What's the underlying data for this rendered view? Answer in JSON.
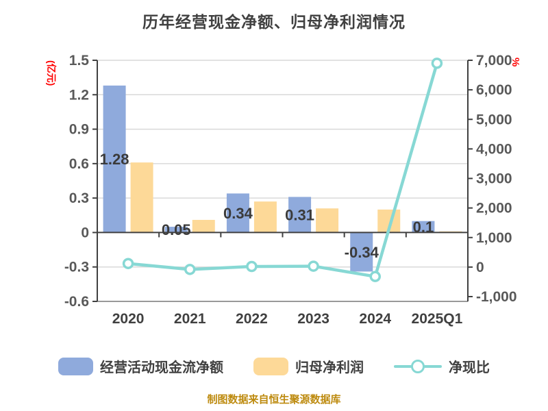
{
  "title": "历年经营现金净额、归母净利润情况",
  "footer": "制图数据来自恒生聚源数据库",
  "colors": {
    "operating_cash_bar": "#8FAADC",
    "net_profit_bar": "#FDD998",
    "ratio_line": "#87D8D4",
    "axis_unit_label": "#FF0000",
    "title_text": "#404040",
    "tick_text": "#595959",
    "gridline": "#D9D9D9",
    "axis_line": "#404040",
    "footer_text": "#BD8A0E"
  },
  "legend": [
    {
      "label": "经营活动现金流净额",
      "type": "bar"
    },
    {
      "label": "归母净利润",
      "type": "bar"
    },
    {
      "label": "净现比",
      "type": "line"
    }
  ],
  "chart_data": {
    "type": "bar",
    "subtype": "grouped bars with overlay line, dual y-axes",
    "title": "历年经营现金净额、归母净利润情况",
    "categories": [
      "2020",
      "2021",
      "2022",
      "2023",
      "2024",
      "2025Q1"
    ],
    "series": [
      {
        "name": "经营活动现金流净额",
        "type": "bar",
        "axis": "left",
        "key": "operating-cash",
        "color": "#8FAADC",
        "values": [
          1.28,
          0.05,
          0.34,
          0.31,
          -0.34,
          0.1
        ],
        "labels": [
          "1.28",
          "0.05",
          "0.34",
          "0.31",
          "-0.34",
          "0.1"
        ]
      },
      {
        "name": "归母净利润",
        "type": "bar",
        "axis": "left",
        "key": "net-profit",
        "color": "#FDD998",
        "values": [
          0.61,
          0.11,
          0.27,
          0.21,
          0.2,
          0.01
        ]
      },
      {
        "name": "净现比",
        "type": "line",
        "axis": "right",
        "key": "ratio",
        "color": "#87D8D4",
        "values": [
          120,
          -80,
          20,
          30,
          -320,
          6900
        ]
      }
    ],
    "left_axis": {
      "label": "(亿元)",
      "min": -0.6,
      "max": 1.5,
      "step": 0.3,
      "ticks": [
        "1.5",
        "1.2",
        "0.9",
        "0.6",
        "0.3",
        "0",
        "-0.3",
        "-0.6"
      ]
    },
    "right_axis": {
      "label": "%",
      "min": -1000,
      "max": 7000,
      "step": 1000,
      "ticks": [
        "7,000",
        "6,000",
        "5,000",
        "4,000",
        "3,000",
        "2,000",
        "1,000",
        "0",
        "-1,000"
      ]
    },
    "grid": true,
    "legend_position": "bottom"
  }
}
